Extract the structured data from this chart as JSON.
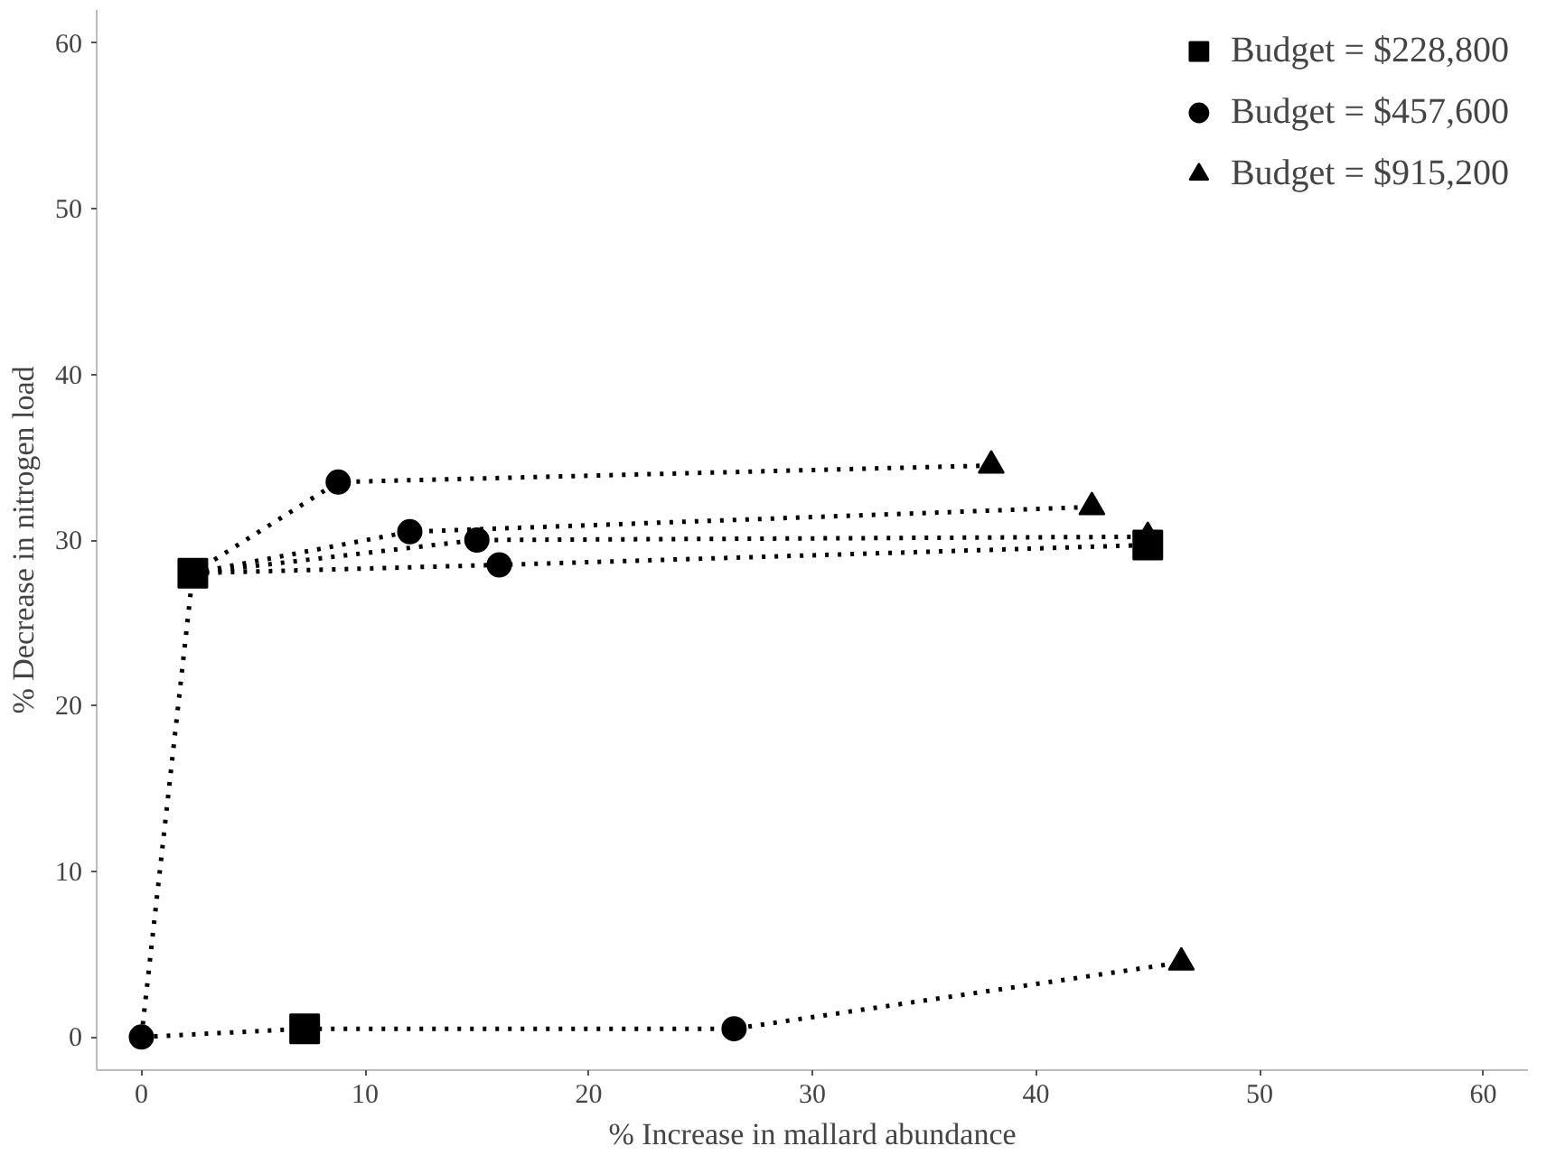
{
  "chart_data": {
    "type": "scatter",
    "xlabel": "% Increase in mallard abundance",
    "ylabel": "% Decrease in nitrogen load",
    "xlim": [
      -2,
      62
    ],
    "ylim": [
      -2,
      62
    ],
    "xticks": [
      0,
      10,
      20,
      30,
      40,
      50,
      60
    ],
    "yticks": [
      0,
      10,
      20,
      30,
      40,
      50,
      60
    ],
    "grid": false,
    "legend": "top right",
    "series": [
      {
        "type": "line",
        "color": "#000000",
        "marker": "none",
        "line_style": "dotted",
        "x": [
          0,
          2.3
        ],
        "values": [
          0,
          28
        ]
      },
      {
        "type": "line",
        "color": "#000000",
        "marker": "none",
        "line_style": "dotted",
        "x": [
          2.3,
          8.8,
          38
        ],
        "values": [
          28,
          33.5,
          34.5
        ]
      },
      {
        "type": "line",
        "color": "#000000",
        "marker": "none",
        "line_style": "dotted",
        "x": [
          2.3,
          12,
          42.5
        ],
        "values": [
          28,
          30.5,
          32
        ]
      },
      {
        "type": "line",
        "color": "#000000",
        "marker": "none",
        "line_style": "dotted",
        "x": [
          2.3,
          15,
          45
        ],
        "values": [
          28,
          30,
          30.2
        ]
      },
      {
        "type": "line",
        "color": "#000000",
        "marker": "none",
        "line_style": "dotted",
        "x": [
          2.3,
          16,
          45
        ],
        "values": [
          28,
          28.5,
          29.7
        ]
      },
      {
        "type": "line",
        "color": "#000000",
        "marker": "none",
        "line_style": "dotted",
        "x": [
          0,
          7.3,
          26.5,
          46.5
        ],
        "values": [
          0,
          0.5,
          0.5,
          4.5
        ]
      },
      {
        "name": "Budget = $228,800",
        "color": "#000000",
        "marker": "square",
        "x": [
          2.3,
          7.3,
          45
        ],
        "values": [
          28,
          0.5,
          29.7
        ]
      },
      {
        "name": "Budget = $457,600",
        "color": "#000000",
        "marker": "circle",
        "x": [
          0,
          8.8,
          12,
          15,
          16,
          26.5
        ],
        "values": [
          0,
          33.5,
          30.5,
          30,
          28.5,
          0.5
        ]
      },
      {
        "name": "Budget = $915,200",
        "color": "#000000",
        "marker": "triangle",
        "x": [
          38,
          42.5,
          45,
          46.5
        ],
        "values": [
          34.5,
          32,
          30.2,
          4.5
        ]
      }
    ]
  }
}
